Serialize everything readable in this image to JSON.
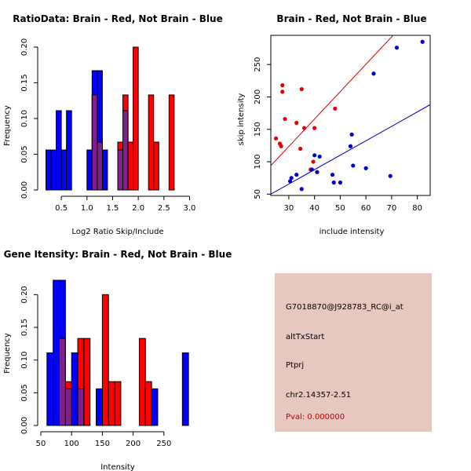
{
  "colors": {
    "brain": "#ff0000",
    "not_brain": "#0000ff",
    "overlap": "#80208a",
    "panel": "#e6c8c0"
  },
  "chart_data": [
    {
      "type": "bar",
      "subtype": "histogram-overlay",
      "title": "RatioData: Brain - Red, Not Brain - Blue",
      "xlabel": "Log2 Ratio Skip/Include",
      "ylabel": "Frequency",
      "xlim": [
        0.1,
        3.1
      ],
      "ylim": [
        0,
        0.2
      ],
      "xticks": [
        0.5,
        1.0,
        1.5,
        2.0,
        2.5,
        3.0
      ],
      "xtick_labels": [
        "0.5",
        "1.0",
        "1.5",
        "2.0",
        "2.5",
        "3.0"
      ],
      "yticks": [
        0,
        0.05,
        0.1,
        0.15,
        0.2
      ],
      "ytick_labels": [
        "0.00",
        "0.05",
        "0.10",
        "0.15",
        "0.20"
      ],
      "series": [
        {
          "name": "Not Brain",
          "color": "blue",
          "bins": [
            [
              0.2,
              0.3,
              0.056
            ],
            [
              0.3,
              0.4,
              0.056
            ],
            [
              0.4,
              0.5,
              0.111
            ],
            [
              0.5,
              0.6,
              0.056
            ],
            [
              0.6,
              0.7,
              0.111
            ],
            [
              1.0,
              1.1,
              0.056
            ],
            [
              1.1,
              1.2,
              0.167
            ],
            [
              1.2,
              1.3,
              0.167
            ],
            [
              1.3,
              1.4,
              0.056
            ],
            [
              1.6,
              1.7,
              0.056
            ],
            [
              1.7,
              1.8,
              0.111
            ]
          ]
        },
        {
          "name": "Brain",
          "color": "red",
          "bins": [
            [
              1.1,
              1.2,
              0.133
            ],
            [
              1.2,
              1.3,
              0.067
            ],
            [
              1.6,
              1.7,
              0.067
            ],
            [
              1.7,
              1.8,
              0.133
            ],
            [
              1.8,
              1.9,
              0.067
            ],
            [
              1.9,
              2.0,
              0.2
            ],
            [
              2.2,
              2.3,
              0.133
            ],
            [
              2.3,
              2.4,
              0.067
            ],
            [
              2.6,
              2.7,
              0.133
            ]
          ]
        }
      ]
    },
    {
      "type": "scatter",
      "title": "Brain - Red, Not Brain - Blue",
      "xlabel": "include intensity",
      "ylabel": "skip intensity",
      "xlim": [
        23,
        85
      ],
      "ylim": [
        48,
        295
      ],
      "xticks": [
        30,
        40,
        50,
        60,
        70,
        80
      ],
      "xtick_labels": [
        "30",
        "40",
        "50",
        "60",
        "70",
        "80"
      ],
      "yticks": [
        50,
        100,
        150,
        200,
        250
      ],
      "ytick_labels": [
        "50",
        "100",
        "150",
        "200",
        "250"
      ],
      "series": [
        {
          "name": "Brain",
          "color": "red",
          "points": [
            [
              25,
              136
            ],
            [
              26.5,
              128
            ],
            [
              27,
              124
            ],
            [
              27.5,
              208
            ],
            [
              27.5,
              218
            ],
            [
              28.5,
              166
            ],
            [
              33,
              160
            ],
            [
              34.5,
              120
            ],
            [
              35,
              212
            ],
            [
              36,
              152
            ],
            [
              38.5,
              88
            ],
            [
              39.5,
              100
            ],
            [
              40,
              152
            ],
            [
              48,
              182
            ]
          ]
        },
        {
          "name": "Not Brain",
          "color": "blue",
          "points": [
            [
              30.5,
              70
            ],
            [
              31,
              75
            ],
            [
              33,
              80
            ],
            [
              35,
              58
            ],
            [
              39,
              88
            ],
            [
              40,
              110
            ],
            [
              41,
              84
            ],
            [
              42,
              108
            ],
            [
              47,
              80
            ],
            [
              47.5,
              68
            ],
            [
              50,
              68
            ],
            [
              54,
              124
            ],
            [
              54.5,
              142
            ],
            [
              55,
              94
            ],
            [
              60,
              90
            ],
            [
              63,
              236
            ],
            [
              69.5,
              78
            ],
            [
              72,
              276
            ],
            [
              82,
              285
            ]
          ]
        }
      ],
      "fit_lines": [
        {
          "name": "Brain fit",
          "color": "red",
          "x": [
            23,
            85
          ],
          "y": [
            94,
            356
          ]
        },
        {
          "name": "Not Brain fit",
          "color": "blue",
          "x": [
            23,
            85
          ],
          "y": [
            50,
            188
          ]
        }
      ]
    },
    {
      "type": "bar",
      "subtype": "histogram-overlay",
      "title": "Gene Itensity: Brain - Red, Not Brain - Blue",
      "xlabel": "Intensity",
      "ylabel": "Frequency",
      "xlim": [
        50,
        300
      ],
      "ylim": [
        0,
        0.222
      ],
      "xticks": [
        50,
        100,
        150,
        200,
        250
      ],
      "xtick_labels": [
        "50",
        "100",
        "150",
        "200",
        "250"
      ],
      "yticks": [
        0,
        0.05,
        0.1,
        0.15,
        0.2
      ],
      "ytick_labels": [
        "0.00",
        "0.05",
        "0.10",
        "0.15",
        "0.20"
      ],
      "series": [
        {
          "name": "Not Brain",
          "color": "blue",
          "bins": [
            [
              60,
              70,
              0.111
            ],
            [
              70,
              80,
              0.222
            ],
            [
              80,
              90,
              0.222
            ],
            [
              90,
              100,
              0.056
            ],
            [
              100,
              110,
              0.111
            ],
            [
              110,
              120,
              0.056
            ],
            [
              140,
              150,
              0.056
            ],
            [
              230,
              240,
              0.056
            ],
            [
              280,
              290,
              0.111
            ]
          ]
        },
        {
          "name": "Brain",
          "color": "red",
          "bins": [
            [
              80,
              90,
              0.133
            ],
            [
              90,
              100,
              0.067
            ],
            [
              110,
              120,
              0.133
            ],
            [
              120,
              130,
              0.133
            ],
            [
              150,
              160,
              0.2
            ],
            [
              160,
              170,
              0.067
            ],
            [
              170,
              180,
              0.067
            ],
            [
              210,
              220,
              0.133
            ],
            [
              220,
              230,
              0.067
            ]
          ]
        }
      ]
    }
  ],
  "info_panel": {
    "probe_id": "G7018870@J928783_RC@i_at",
    "event_type": "altTxStart",
    "gene": "Ptprj",
    "location": "chr2.14357-2.51",
    "pval": "Pval: 0.000000"
  }
}
